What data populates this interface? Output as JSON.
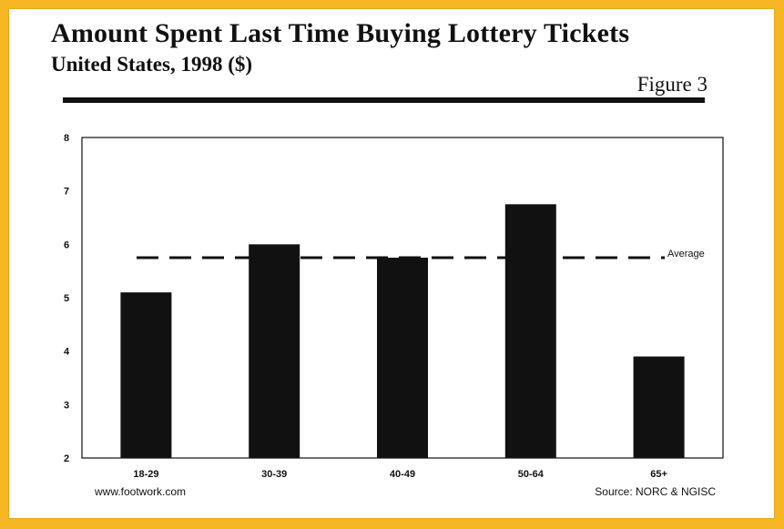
{
  "header": {
    "title": "Amount Spent Last Time Buying Lottery Tickets",
    "subtitle": "United States, 1998 ($)",
    "figure_label": "Figure 3"
  },
  "footer": {
    "website": "www.footwork.com",
    "source": "Source: NORC & NGISC"
  },
  "colors": {
    "frame": "#f7b623",
    "bar": "#111111",
    "ink": "#111111"
  },
  "chart_data": {
    "type": "bar",
    "title": "Amount Spent Last Time Buying Lottery Tickets",
    "subtitle": "United States, 1998 ($)",
    "xlabel": "",
    "ylabel": "",
    "categories": [
      "18-29",
      "30-39",
      "40-49",
      "50-64",
      "65+"
    ],
    "values": [
      5.1,
      6.0,
      5.75,
      6.75,
      3.9
    ],
    "ylim": [
      2,
      8
    ],
    "yticks": [
      2,
      3,
      4,
      5,
      6,
      7,
      8
    ],
    "grid": false,
    "reference_line": {
      "label": "Average",
      "value": 5.75,
      "style": "dashed"
    }
  }
}
